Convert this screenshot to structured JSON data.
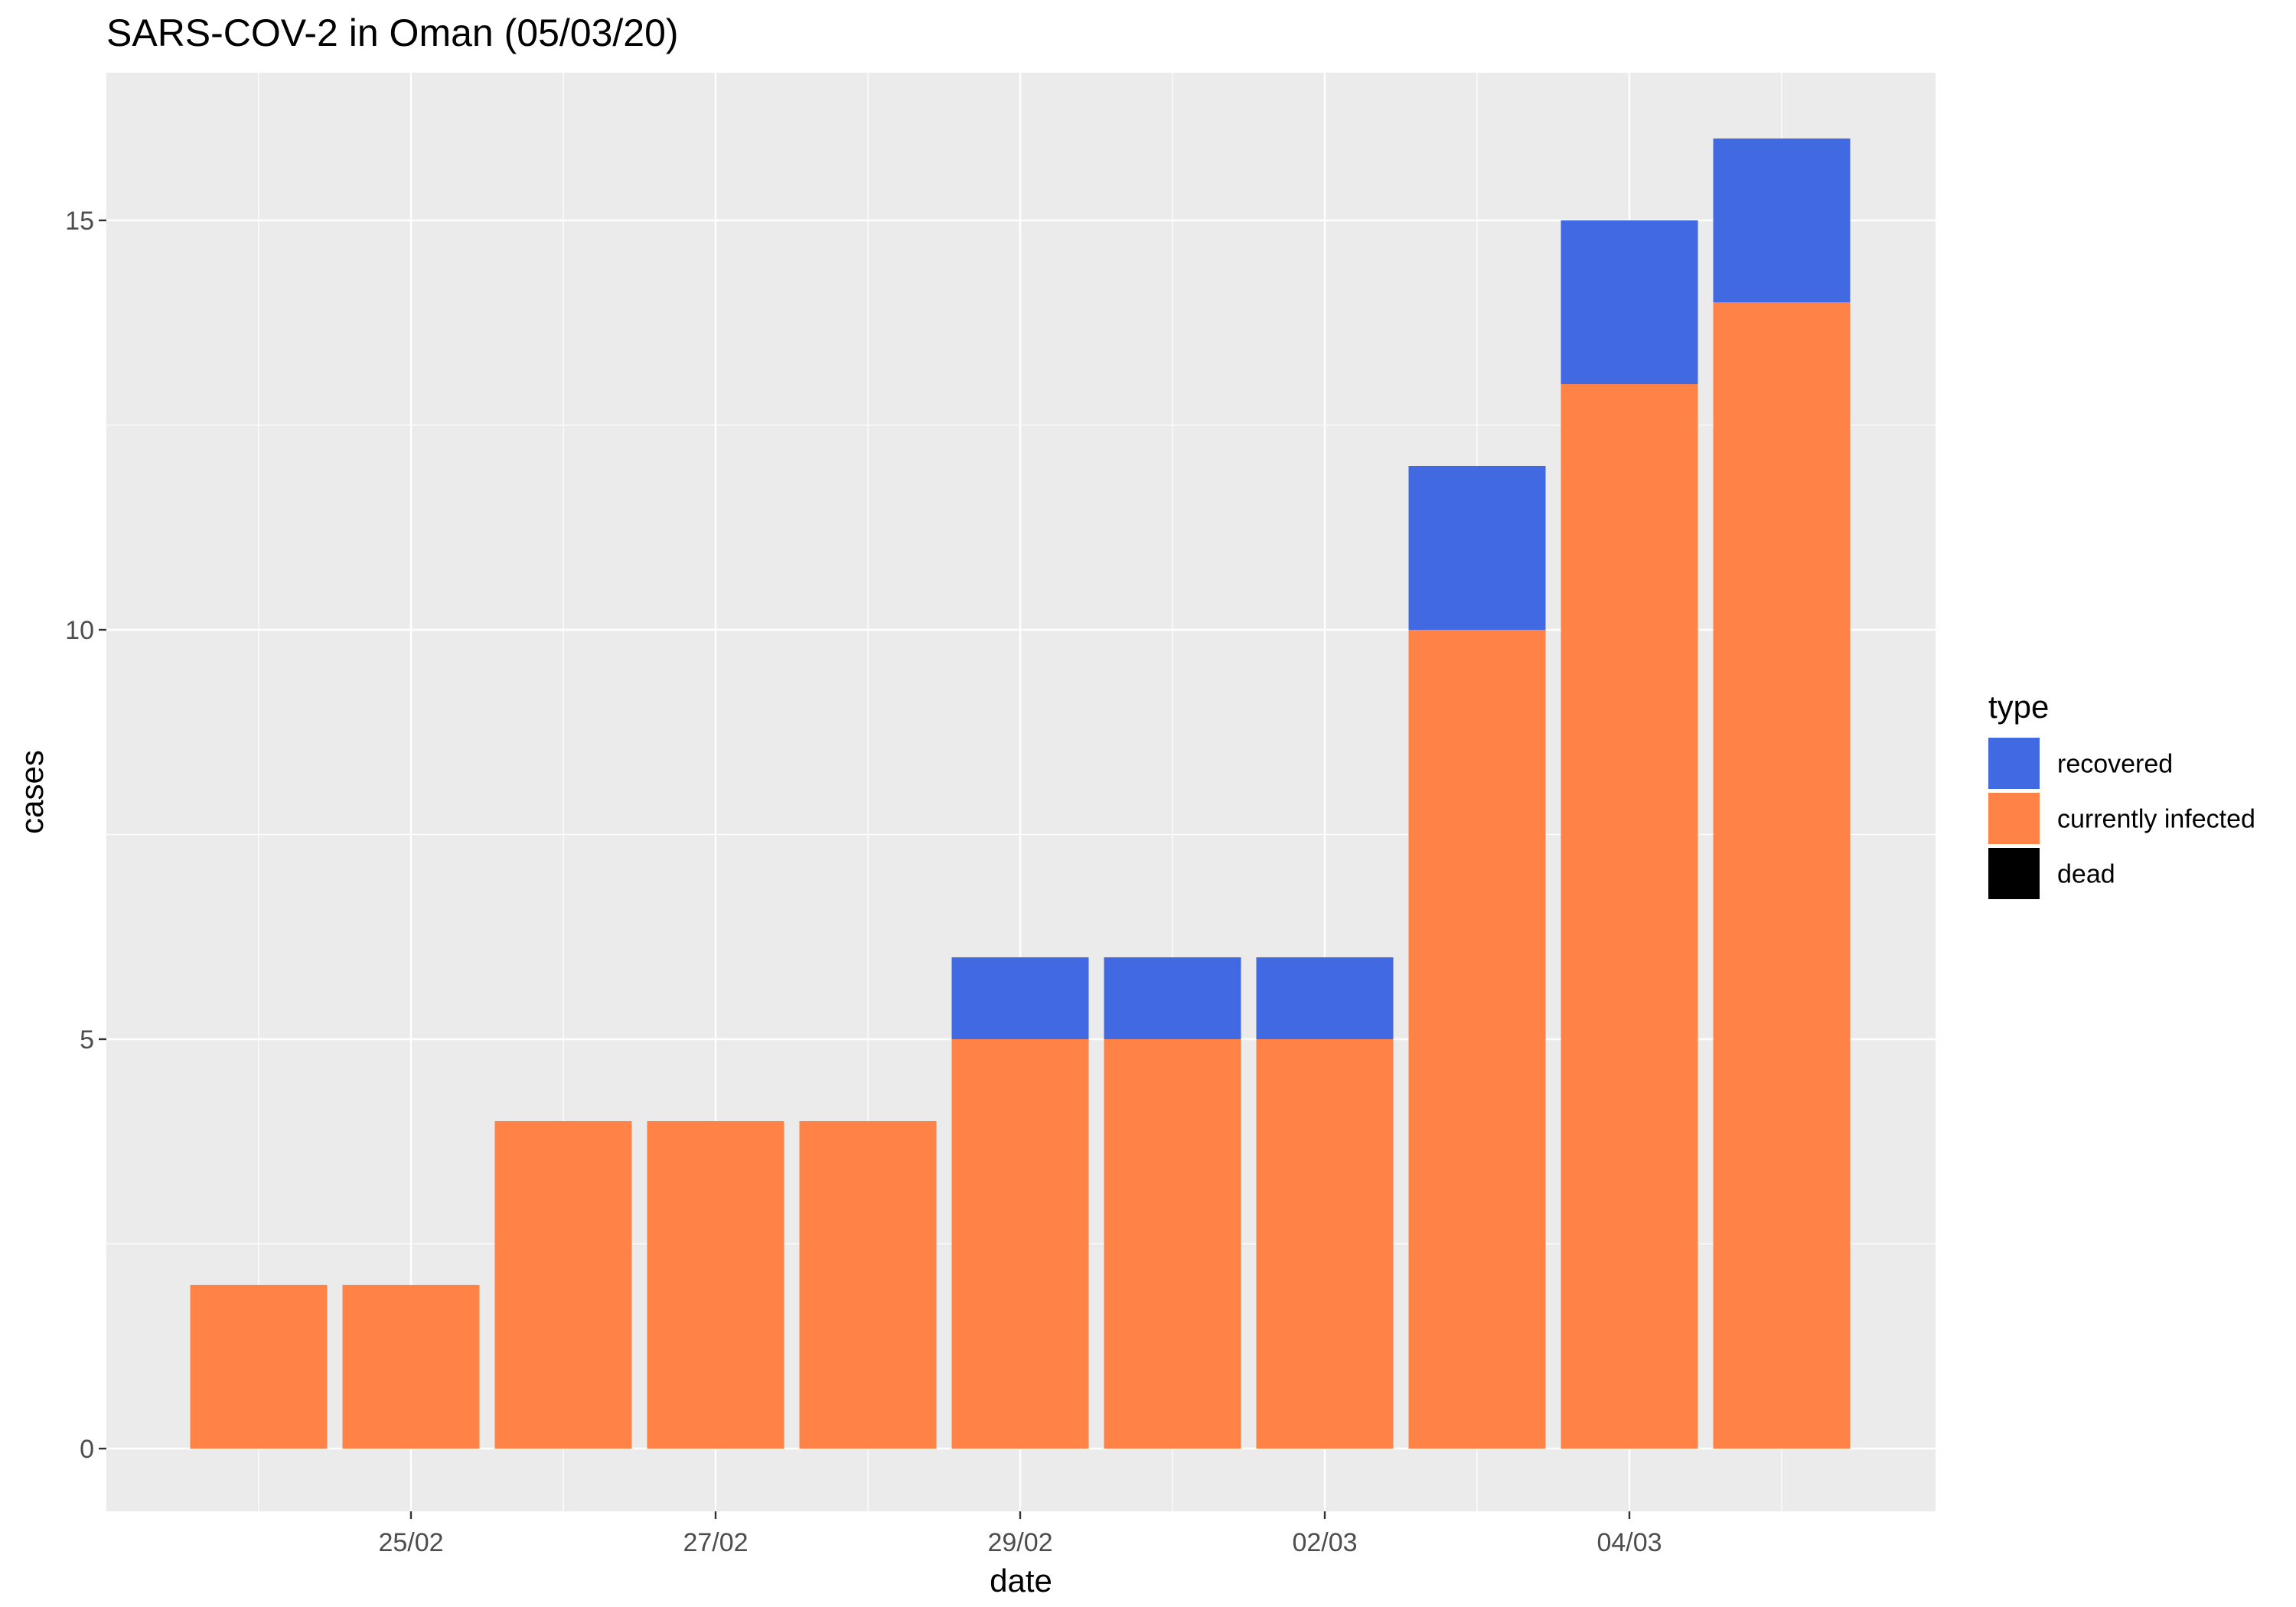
{
  "chart_data": {
    "type": "bar",
    "stacked": true,
    "title": "SARS-COV-2 in Oman (05/03/20)",
    "xlabel": "date",
    "ylabel": "cases",
    "ylim": [
      -1,
      16.5
    ],
    "y_ticks": [
      0,
      5,
      10,
      15
    ],
    "x_tick_labels": [
      "25/02",
      "27/02",
      "29/02",
      "02/03",
      "04/03"
    ],
    "categories": [
      "24/02",
      "25/02",
      "26/02",
      "27/02",
      "28/02",
      "29/02",
      "01/03",
      "02/03",
      "03/03",
      "04/03",
      "05/03"
    ],
    "series": [
      {
        "name": "currently infected",
        "color": "#FF8247",
        "values": [
          2,
          2,
          4,
          4,
          4,
          5,
          5,
          5,
          10,
          13,
          14
        ]
      },
      {
        "name": "recovered",
        "color": "#4169E1",
        "values": [
          0,
          0,
          0,
          0,
          0,
          1,
          1,
          1,
          2,
          2,
          2
        ]
      },
      {
        "name": "dead",
        "color": "#000000",
        "values": [
          0,
          0,
          0,
          0,
          0,
          0,
          0,
          0,
          0,
          0,
          0
        ]
      }
    ],
    "legend": {
      "title": "type",
      "position": "right",
      "items": [
        {
          "label": "recovered",
          "color": "#4169E1"
        },
        {
          "label": "currently infected",
          "color": "#FF8247"
        },
        {
          "label": "dead",
          "color": "#000000"
        }
      ]
    },
    "grid": true,
    "panel_background": "#EBEBEB"
  }
}
